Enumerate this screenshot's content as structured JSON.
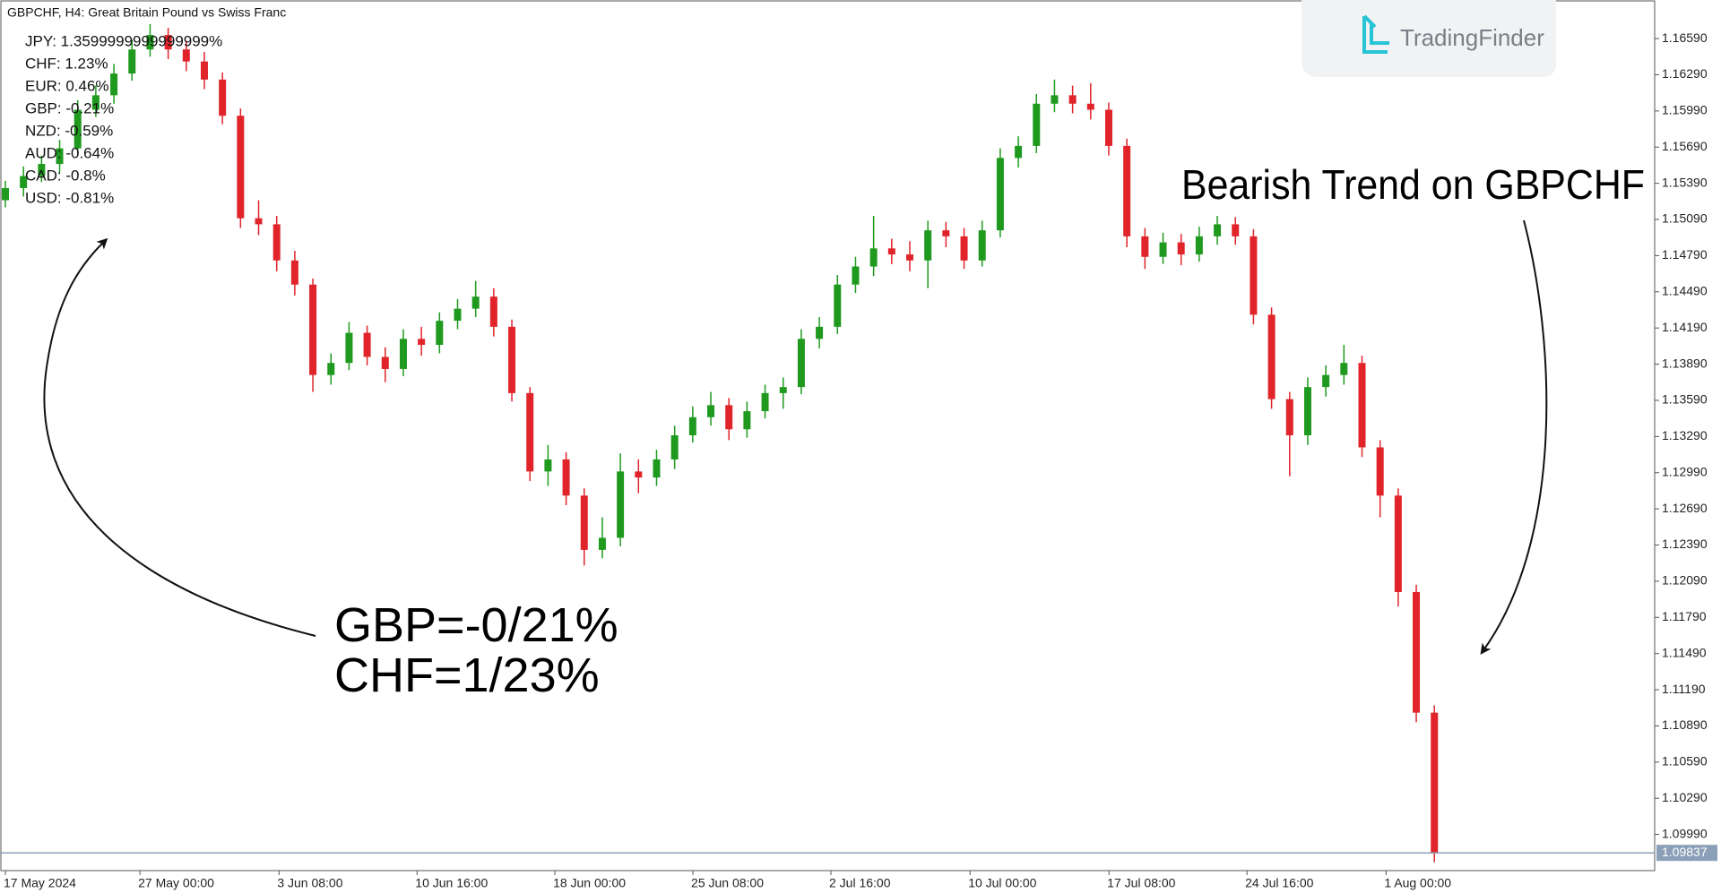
{
  "header": {
    "logo": "TradingFinder"
  },
  "strength": [
    "JPY: 1.3599999999999999%",
    "CHF: 1.23%",
    "EUR: 0.46%",
    "GBP: -0.21%",
    "NZD: -0.59%",
    "AUD: -0.64%",
    "CAD: -0.8%",
    "USD: -0.81%"
  ],
  "annotations": {
    "left": [
      "GBP=-0/21%",
      "CHF=1/23%"
    ],
    "right": "Bearish Trend on GBPCHF"
  },
  "chart_data": {
    "type": "candlestick",
    "title": "GBPCHF, H4:  Great Britain Pound vs Swiss Franc",
    "up_color": "#1f9a1f",
    "down_color": "#e0242a",
    "open": [
      1.1525,
      1.1535,
      1.1545,
      1.1555,
      1.1568,
      1.16,
      1.1612,
      1.163,
      1.165,
      1.1662,
      1.165,
      1.164,
      1.1625,
      1.1595,
      1.151,
      1.1505,
      1.1475,
      1.1455,
      1.138,
      1.139,
      1.1415,
      1.1395,
      1.1385,
      1.141,
      1.1405,
      1.1425,
      1.1435,
      1.1445,
      1.142,
      1.1365,
      1.13,
      1.131,
      1.128,
      1.1235,
      1.1245,
      1.13,
      1.1295,
      1.131,
      1.133,
      1.1345,
      1.1355,
      1.1335,
      1.135,
      1.1365,
      1.137,
      1.141,
      1.142,
      1.1455,
      1.147,
      1.1485,
      1.148,
      1.1475,
      1.15,
      1.1495,
      1.1475,
      1.15,
      1.156,
      1.157,
      1.1605,
      1.1612,
      1.1605,
      1.16,
      1.157,
      1.1495,
      1.1478,
      1.149,
      1.148,
      1.1495,
      1.1505,
      1.1495,
      1.143,
      1.136,
      1.133,
      1.137,
      1.138,
      1.139,
      1.132,
      1.128,
      1.12,
      1.11
    ],
    "high": [
      1.1541,
      1.1553,
      1.1562,
      1.1575,
      1.1608,
      1.162,
      1.1638,
      1.1658,
      1.1671,
      1.1668,
      1.1657,
      1.1648,
      1.1631,
      1.1601,
      1.1525,
      1.1512,
      1.1483,
      1.146,
      1.1398,
      1.1424,
      1.1421,
      1.1403,
      1.1418,
      1.142,
      1.1432,
      1.1443,
      1.1458,
      1.1452,
      1.1426,
      1.137,
      1.1322,
      1.1316,
      1.1286,
      1.1262,
      1.1315,
      1.131,
      1.1318,
      1.1338,
      1.1354,
      1.1366,
      1.1361,
      1.1358,
      1.1372,
      1.1378,
      1.1418,
      1.1428,
      1.1463,
      1.1478,
      1.1512,
      1.1493,
      1.1491,
      1.1508,
      1.1507,
      1.1502,
      1.1508,
      1.1568,
      1.1578,
      1.1613,
      1.1625,
      1.162,
      1.1622,
      1.1606,
      1.1576,
      1.1502,
      1.1498,
      1.1497,
      1.1503,
      1.1512,
      1.1511,
      1.1501,
      1.1436,
      1.1366,
      1.1378,
      1.1388,
      1.1405,
      1.1396,
      1.1326,
      1.1286,
      1.1206,
      1.1106
    ],
    "low": [
      1.1519,
      1.1528,
      1.154,
      1.1548,
      1.1562,
      1.1594,
      1.1605,
      1.1624,
      1.1644,
      1.1642,
      1.1632,
      1.1617,
      1.1588,
      1.1502,
      1.1496,
      1.1466,
      1.1446,
      1.1366,
      1.1372,
      1.1384,
      1.1388,
      1.1374,
      1.1379,
      1.1396,
      1.1398,
      1.1418,
      1.1428,
      1.1412,
      1.1358,
      1.1292,
      1.1288,
      1.1272,
      1.1222,
      1.1228,
      1.1238,
      1.1282,
      1.1288,
      1.1302,
      1.1324,
      1.1338,
      1.1326,
      1.1328,
      1.1344,
      1.1352,
      1.1364,
      1.1402,
      1.1414,
      1.1448,
      1.1462,
      1.1472,
      1.1466,
      1.1452,
      1.1486,
      1.1468,
      1.147,
      1.1494,
      1.1552,
      1.1564,
      1.1598,
      1.1597,
      1.1592,
      1.1562,
      1.1486,
      1.1468,
      1.1472,
      1.1471,
      1.1474,
      1.1488,
      1.1488,
      1.1422,
      1.1352,
      1.1296,
      1.1322,
      1.1362,
      1.1372,
      1.1312,
      1.1262,
      1.1188,
      1.1092,
      1.0976
    ],
    "close": [
      1.1535,
      1.1545,
      1.1555,
      1.1568,
      1.16,
      1.1612,
      1.163,
      1.165,
      1.1662,
      1.165,
      1.164,
      1.1625,
      1.1595,
      1.151,
      1.1505,
      1.1475,
      1.1455,
      1.138,
      1.139,
      1.1415,
      1.1395,
      1.1385,
      1.141,
      1.1405,
      1.1425,
      1.1435,
      1.1445,
      1.142,
      1.1365,
      1.13,
      1.131,
      1.128,
      1.1235,
      1.1245,
      1.13,
      1.1295,
      1.131,
      1.133,
      1.1345,
      1.1355,
      1.1335,
      1.135,
      1.1365,
      1.137,
      1.141,
      1.142,
      1.1455,
      1.147,
      1.1485,
      1.148,
      1.1475,
      1.15,
      1.1495,
      1.1475,
      1.15,
      1.156,
      1.157,
      1.1605,
      1.1612,
      1.1605,
      1.16,
      1.157,
      1.1495,
      1.1478,
      1.149,
      1.148,
      1.1495,
      1.1505,
      1.1495,
      1.143,
      1.136,
      1.133,
      1.137,
      1.138,
      1.139,
      1.132,
      1.128,
      1.12,
      1.11,
      1.0984
    ],
    "ylim": [
      1.0969,
      1.1691
    ],
    "yticks": [
      {
        "value": 1.1659,
        "label": "1.16590"
      },
      {
        "value": 1.1629,
        "label": "1.16290"
      },
      {
        "value": 1.1599,
        "label": "1.15990"
      },
      {
        "value": 1.1569,
        "label": "1.15690"
      },
      {
        "value": 1.1539,
        "label": "1.15390"
      },
      {
        "value": 1.1509,
        "label": "1.15090"
      },
      {
        "value": 1.1479,
        "label": "1.14790"
      },
      {
        "value": 1.1449,
        "label": "1.14490"
      },
      {
        "value": 1.1419,
        "label": "1.14190"
      },
      {
        "value": 1.1389,
        "label": "1.13890"
      },
      {
        "value": 1.1359,
        "label": "1.13590"
      },
      {
        "value": 1.1329,
        "label": "1.13290"
      },
      {
        "value": 1.1299,
        "label": "1.12990"
      },
      {
        "value": 1.1269,
        "label": "1.12690"
      },
      {
        "value": 1.1239,
        "label": "1.12390"
      },
      {
        "value": 1.1209,
        "label": "1.12090"
      },
      {
        "value": 1.1179,
        "label": "1.11790"
      },
      {
        "value": 1.1149,
        "label": "1.11490"
      },
      {
        "value": 1.1119,
        "label": "1.11190"
      },
      {
        "value": 1.1089,
        "label": "1.10890"
      },
      {
        "value": 1.1059,
        "label": "1.10590"
      },
      {
        "value": 1.1029,
        "label": "1.10290"
      },
      {
        "value": 1.0999,
        "label": "1.09990"
      }
    ],
    "xticks": [
      {
        "value": 0,
        "label": "17 May 2024"
      },
      {
        "value": 7.44,
        "label": "27 May 00:00"
      },
      {
        "value": 15.13,
        "label": "3 Jun 08:00"
      },
      {
        "value": 22.76,
        "label": "10 Jun 16:00"
      },
      {
        "value": 30.38,
        "label": "18 Jun 00:00"
      },
      {
        "value": 38.01,
        "label": "25 Jun 08:00"
      },
      {
        "value": 45.64,
        "label": "2 Jul 16:00"
      },
      {
        "value": 53.33,
        "label": "10 Jul 00:00"
      },
      {
        "value": 61.01,
        "label": "17 Jul 08:00"
      },
      {
        "value": 68.64,
        "label": "24 Jul 16:00"
      },
      {
        "value": 76.33,
        "label": "1 Aug 00:00"
      }
    ],
    "last_price": {
      "value": 1.09837,
      "label": "1.09837"
    }
  }
}
